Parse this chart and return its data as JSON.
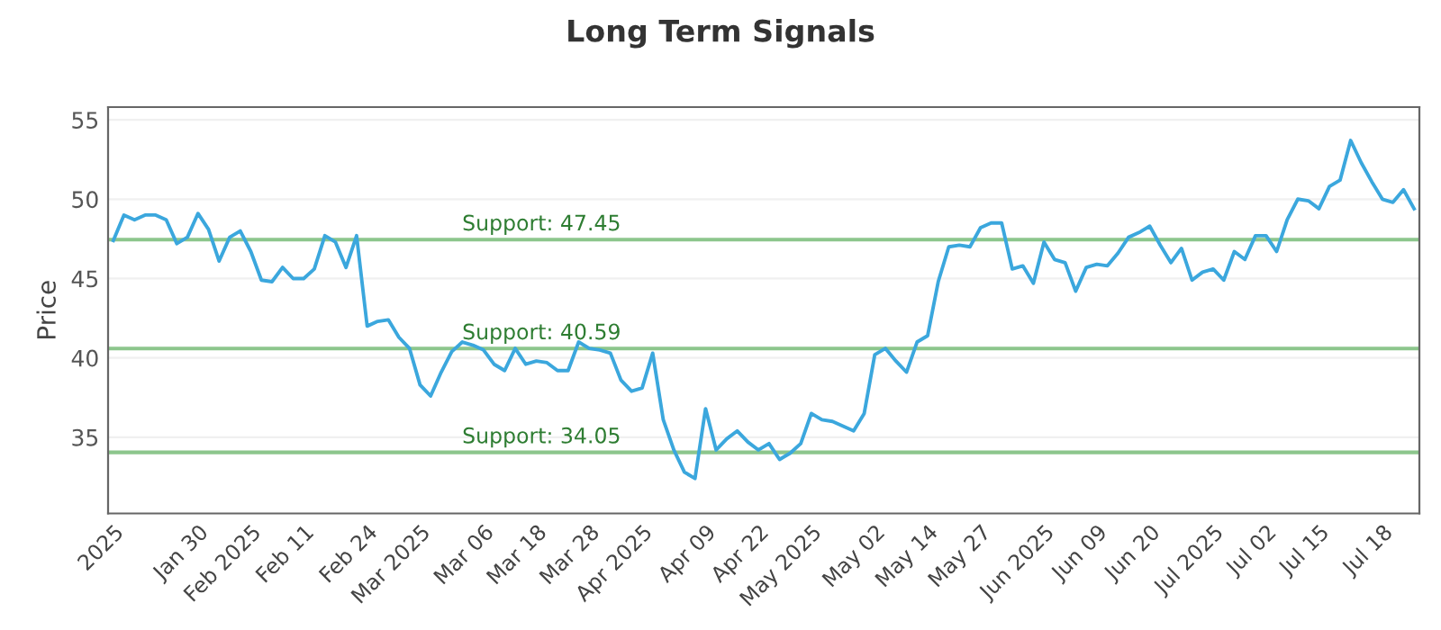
{
  "chart_data": {
    "type": "line",
    "title": "Long Term Signals",
    "ylabel": "Price",
    "categories": [
      "2025",
      null,
      null,
      null,
      null,
      null,
      null,
      null,
      "Jan 30",
      null,
      null,
      null,
      null,
      "Feb 2025",
      null,
      null,
      null,
      null,
      "Feb 11",
      null,
      null,
      null,
      null,
      null,
      "Feb 24",
      null,
      null,
      null,
      null,
      "Mar 2025",
      null,
      null,
      null,
      null,
      null,
      "Mar 06",
      null,
      null,
      null,
      null,
      "Mar 18",
      null,
      null,
      null,
      null,
      "Mar 28",
      null,
      null,
      null,
      null,
      "Apr 2025",
      null,
      null,
      null,
      null,
      null,
      "Apr 09",
      null,
      null,
      null,
      null,
      "Apr 22",
      null,
      null,
      null,
      null,
      "May 2025",
      null,
      null,
      null,
      null,
      null,
      "May 02",
      null,
      null,
      null,
      null,
      "May 14",
      null,
      null,
      null,
      null,
      "May 27",
      null,
      null,
      null,
      null,
      null,
      "Jun 2025",
      null,
      null,
      null,
      null,
      "Jun 09",
      null,
      null,
      null,
      null,
      "Jun 20",
      null,
      null,
      null,
      null,
      null,
      "Jul 2025",
      null,
      null,
      null,
      null,
      "Jul 02",
      null,
      null,
      null,
      null,
      "Jul 15",
      null,
      null,
      null,
      null,
      null,
      "Jul 18",
      null,
      null,
      null
    ],
    "series": [
      {
        "color": "#3ba7dd",
        "values": [
          47.4,
          49.0,
          48.7,
          49.0,
          49.0,
          48.7,
          47.2,
          47.6,
          49.1,
          48.1,
          46.1,
          47.6,
          48.0,
          46.7,
          44.9,
          44.8,
          45.7,
          45.0,
          45.0,
          45.6,
          47.7,
          47.3,
          45.7,
          47.7,
          42.0,
          42.3,
          42.4,
          41.3,
          40.6,
          38.3,
          37.6,
          39.1,
          40.4,
          41.0,
          40.8,
          40.5,
          39.6,
          39.2,
          40.6,
          39.6,
          39.8,
          39.7,
          39.2,
          39.2,
          41.0,
          40.6,
          40.5,
          40.3,
          38.6,
          37.9,
          38.1,
          40.3,
          36.1,
          34.2,
          32.8,
          32.4,
          36.8,
          34.2,
          34.9,
          35.4,
          34.7,
          34.2,
          34.6,
          33.6,
          34.0,
          34.6,
          36.5,
          36.1,
          36.0,
          35.7,
          35.4,
          36.5,
          40.2,
          40.6,
          39.8,
          39.1,
          41.0,
          41.4,
          44.8,
          47.0,
          47.1,
          47.0,
          48.2,
          48.5,
          48.5,
          45.6,
          45.8,
          44.7,
          47.3,
          46.2,
          46.0,
          44.2,
          45.7,
          45.9,
          45.8,
          46.6,
          47.6,
          47.9,
          48.3,
          47.1,
          46.0,
          46.9,
          44.9,
          45.4,
          45.6,
          44.9,
          46.7,
          46.2,
          47.7,
          47.7,
          46.7,
          48.7,
          50.0,
          49.9,
          49.4,
          50.8,
          51.2,
          53.7,
          52.3,
          51.1,
          50.0,
          49.8,
          50.6,
          49.4
        ]
      }
    ],
    "ylim": [
      30.2,
      55.8
    ],
    "yticks": [
      35,
      40,
      45,
      50,
      55
    ],
    "grid": "y",
    "ref_lines": [
      {
        "axis": "y",
        "value": 47.45,
        "label": "Support: 47.45",
        "color": "#8cc68c"
      },
      {
        "axis": "y",
        "value": 40.59,
        "label": "Support: 40.59",
        "color": "#8cc68c"
      },
      {
        "axis": "y",
        "value": 34.05,
        "label": "Support: 34.05",
        "color": "#8cc68c"
      }
    ]
  }
}
